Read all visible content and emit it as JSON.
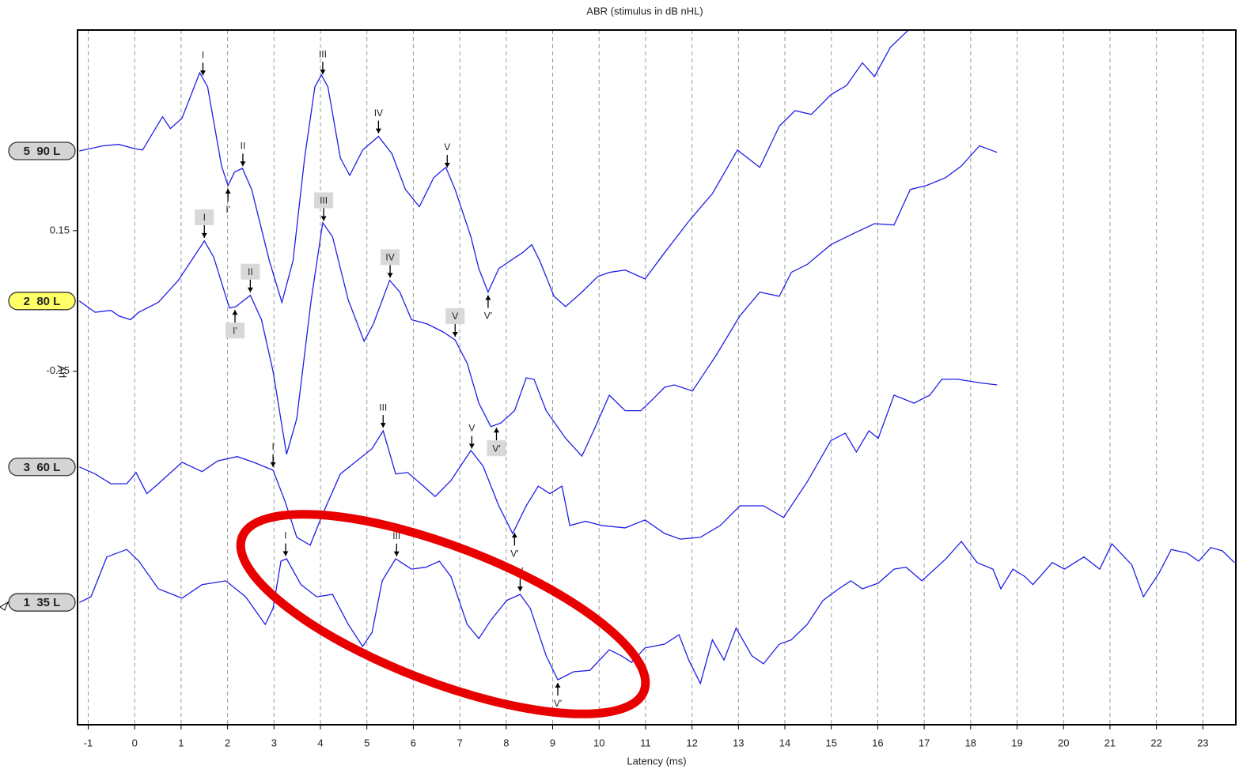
{
  "chart_data": {
    "type": "line",
    "title": "ABR (stimulus in dB nHL)",
    "x_label": "Latency (ms)",
    "y_label": "µV",
    "xlim": [
      -1.23,
      23.71
    ],
    "ylim": [
      -0.904,
      0.578
    ],
    "xticks": [
      -1,
      0,
      1,
      2,
      3,
      4,
      5,
      6,
      7,
      8,
      9,
      10,
      11,
      12,
      13,
      14,
      15,
      16,
      17,
      18,
      19,
      20,
      21,
      22,
      23
    ],
    "yticks": [
      0.15,
      -0.15
    ],
    "grid": true,
    "series": [
      {
        "name": "5  90 L",
        "color": "#1f1fe6",
        "label_fill": "#d4d4d4",
        "boxed": false,
        "x": [
          -1.19,
          -0.68,
          -0.34,
          0,
          0.17,
          0.6,
          0.77,
          1.02,
          1.4,
          1.57,
          1.87,
          2.01,
          2.15,
          2.32,
          2.52,
          2.9,
          3.17,
          3.41,
          3.66,
          3.88,
          4.02,
          4.16,
          4.43,
          4.63,
          4.91,
          5.25,
          5.54,
          5.83,
          6.13,
          6.44,
          6.7,
          6.9,
          7.24,
          7.41,
          7.61,
          7.84,
          8.09,
          8.35,
          8.55,
          8.72,
          9.03,
          9.28,
          9.63,
          9.97,
          10.22,
          10.56,
          10.99,
          11.41,
          11.93,
          12.44,
          12.98,
          13.46,
          13.88,
          14.22,
          14.57,
          14.99,
          15.33,
          15.67,
          15.93,
          16.27,
          16.66
        ],
        "values": [
          0.32,
          0.331,
          0.334,
          0.325,
          0.322,
          0.393,
          0.368,
          0.39,
          0.487,
          0.457,
          0.288,
          0.246,
          0.275,
          0.283,
          0.238,
          0.086,
          -0.003,
          0.086,
          0.305,
          0.457,
          0.482,
          0.457,
          0.305,
          0.268,
          0.322,
          0.351,
          0.314,
          0.238,
          0.201,
          0.263,
          0.285,
          0.238,
          0.137,
          0.069,
          0.019,
          0.069,
          0.086,
          0.103,
          0.12,
          0.086,
          0.01,
          -0.012,
          0.019,
          0.052,
          0.061,
          0.066,
          0.047,
          0.103,
          0.17,
          0.229,
          0.322,
          0.285,
          0.373,
          0.406,
          0.398,
          0.44,
          0.46,
          0.508,
          0.479,
          0.541,
          0.578
        ],
        "markers": [
          {
            "label": "I",
            "x": 1.47,
            "kind": "peak"
          },
          {
            "label": "I'",
            "x": 2.01,
            "kind": "trough"
          },
          {
            "label": "II",
            "x": 2.33,
            "kind": "peak"
          },
          {
            "label": "III",
            "x": 4.05,
            "kind": "peak"
          },
          {
            "label": "IV",
            "x": 5.25,
            "kind": "peak"
          },
          {
            "label": "V",
            "x": 6.73,
            "kind": "peak"
          },
          {
            "label": "V'",
            "x": 7.61,
            "kind": "trough"
          }
        ]
      },
      {
        "name": "2  80 L",
        "color": "#1f1fe6",
        "label_fill": "#ffff66",
        "boxed": true,
        "x": [
          -1.19,
          -0.85,
          -0.51,
          -0.34,
          -0.09,
          0.09,
          0.51,
          0.94,
          1.5,
          1.7,
          2.04,
          2.18,
          2.49,
          2.73,
          2.98,
          3.27,
          3.49,
          3.8,
          4.05,
          4.26,
          4.6,
          4.94,
          5.14,
          5.49,
          5.71,
          5.96,
          6.3,
          6.64,
          6.9,
          7.16,
          7.41,
          7.67,
          7.89,
          8.18,
          8.43,
          8.6,
          8.86,
          9.28,
          9.63,
          9.88,
          10.22,
          10.56,
          10.9,
          11.16,
          11.41,
          11.62,
          12.01,
          12.52,
          13.03,
          13.46,
          13.88,
          14.14,
          14.48,
          14.99,
          15.5,
          15.93,
          16.35,
          16.7,
          17.04,
          17.46,
          17.8,
          18.19,
          18.57
        ],
        "values": [
          0,
          -0.024,
          -0.02,
          -0.032,
          -0.04,
          -0.024,
          -0.003,
          0.044,
          0.128,
          0.094,
          -0.015,
          -0.012,
          0.012,
          -0.04,
          -0.15,
          -0.327,
          -0.251,
          0.002,
          0.167,
          0.137,
          0.002,
          -0.086,
          -0.049,
          0.044,
          0.019,
          -0.04,
          -0.049,
          -0.066,
          -0.083,
          -0.133,
          -0.218,
          -0.268,
          -0.26,
          -0.234,
          -0.164,
          -0.167,
          -0.234,
          -0.293,
          -0.331,
          -0.277,
          -0.201,
          -0.234,
          -0.234,
          -0.209,
          -0.184,
          -0.179,
          -0.192,
          -0.116,
          -0.032,
          0.019,
          0.01,
          0.061,
          0.078,
          0.12,
          0.145,
          0.165,
          0.162,
          0.238,
          0.246,
          0.263,
          0.288,
          0.331,
          0.317
        ],
        "markers": [
          {
            "label": "I",
            "x": 1.5,
            "kind": "peak"
          },
          {
            "label": "I'",
            "x": 2.16,
            "kind": "trough"
          },
          {
            "label": "II",
            "x": 2.49,
            "kind": "peak"
          },
          {
            "label": "III",
            "x": 4.07,
            "kind": "peak"
          },
          {
            "label": "IV",
            "x": 5.5,
            "kind": "peak"
          },
          {
            "label": "V",
            "x": 6.9,
            "kind": "peak"
          },
          {
            "label": "V'",
            "x": 7.79,
            "kind": "trough"
          }
        ]
      },
      {
        "name": "3  60 L",
        "color": "#1f1fe6",
        "label_fill": "#d4d4d4",
        "boxed": false,
        "x": [
          -1.19,
          -0.85,
          -0.51,
          -0.17,
          0.03,
          0.26,
          0.51,
          1.02,
          1.45,
          1.79,
          2.21,
          2.56,
          2.98,
          3.24,
          3.49,
          3.78,
          4.05,
          4.43,
          5.11,
          5.35,
          5.62,
          5.88,
          6.22,
          6.47,
          6.81,
          7.24,
          7.5,
          7.84,
          8.14,
          8.43,
          8.69,
          8.94,
          9.2,
          9.37,
          9.71,
          10.05,
          10.56,
          10.99,
          11.41,
          11.75,
          12.18,
          12.61,
          13.03,
          13.54,
          13.97,
          14.48,
          14.99,
          15.3,
          15.54,
          15.81,
          16.01,
          16.35,
          16.78,
          17.12,
          17.38,
          17.72,
          18.23,
          18.57
        ],
        "values": [
          -0.354,
          -0.369,
          -0.39,
          -0.39,
          -0.366,
          -0.411,
          -0.39,
          -0.344,
          -0.364,
          -0.341,
          -0.332,
          -0.344,
          -0.361,
          -0.428,
          -0.504,
          -0.521,
          -0.454,
          -0.369,
          -0.315,
          -0.277,
          -0.369,
          -0.366,
          -0.395,
          -0.417,
          -0.383,
          -0.319,
          -0.352,
          -0.437,
          -0.496,
          -0.437,
          -0.395,
          -0.411,
          -0.395,
          -0.479,
          -0.47,
          -0.479,
          -0.484,
          -0.467,
          -0.496,
          -0.508,
          -0.504,
          -0.479,
          -0.437,
          -0.437,
          -0.462,
          -0.386,
          -0.298,
          -0.282,
          -0.322,
          -0.277,
          -0.293,
          -0.201,
          -0.218,
          -0.201,
          -0.167,
          -0.167,
          -0.175,
          -0.179
        ],
        "markers": [
          {
            "label": "I",
            "x": 2.98,
            "kind": "peak"
          },
          {
            "label": "III",
            "x": 5.35,
            "kind": "peak"
          },
          {
            "label": "V",
            "x": 7.26,
            "kind": "peak"
          },
          {
            "label": "V'",
            "x": 8.18,
            "kind": "trough"
          }
        ]
      },
      {
        "name": "1  35 L",
        "color": "#1f1fe6",
        "label_fill": "#d4d4d4",
        "boxed": false,
        "x": [
          -1.19,
          -0.94,
          -0.6,
          -0.17,
          0.09,
          0.51,
          1.02,
          1.45,
          1.96,
          2.39,
          2.81,
          2.98,
          3.15,
          3.27,
          3.58,
          3.92,
          4.26,
          4.6,
          4.91,
          5.11,
          5.33,
          5.62,
          5.96,
          6.27,
          6.56,
          6.81,
          7.16,
          7.41,
          7.67,
          8.01,
          8.3,
          8.52,
          8.86,
          9.11,
          9.45,
          9.8,
          10.22,
          10.48,
          10.7,
          10.99,
          11.41,
          11.72,
          11.93,
          12.18,
          12.44,
          12.69,
          12.95,
          13.29,
          13.54,
          13.88,
          14.14,
          14.48,
          14.82,
          15.16,
          15.42,
          15.67,
          16.01,
          16.35,
          16.61,
          16.95,
          17.46,
          17.8,
          18.14,
          18.48,
          18.65,
          18.91,
          19.17,
          19.34,
          19.76,
          20.02,
          20.44,
          20.78,
          21.04,
          21.47,
          21.72,
          22.06,
          22.32,
          22.66,
          22.91,
          23.17,
          23.42,
          23.68
        ],
        "values": [
          -0.643,
          -0.631,
          -0.546,
          -0.53,
          -0.555,
          -0.614,
          -0.634,
          -0.605,
          -0.597,
          -0.631,
          -0.69,
          -0.656,
          -0.555,
          -0.55,
          -0.605,
          -0.631,
          -0.626,
          -0.69,
          -0.737,
          -0.707,
          -0.597,
          -0.55,
          -0.572,
          -0.568,
          -0.555,
          -0.588,
          -0.69,
          -0.72,
          -0.681,
          -0.639,
          -0.626,
          -0.656,
          -0.757,
          -0.808,
          -0.791,
          -0.788,
          -0.744,
          -0.757,
          -0.771,
          -0.74,
          -0.732,
          -0.712,
          -0.766,
          -0.816,
          -0.723,
          -0.766,
          -0.698,
          -0.757,
          -0.774,
          -0.732,
          -0.723,
          -0.69,
          -0.639,
          -0.614,
          -0.597,
          -0.614,
          -0.602,
          -0.572,
          -0.568,
          -0.597,
          -0.551,
          -0.513,
          -0.558,
          -0.572,
          -0.614,
          -0.572,
          -0.588,
          -0.605,
          -0.558,
          -0.572,
          -0.546,
          -0.572,
          -0.518,
          -0.563,
          -0.631,
          -0.58,
          -0.53,
          -0.538,
          -0.555,
          -0.526,
          -0.533,
          -0.558
        ],
        "markers": [
          {
            "label": "I",
            "x": 3.25,
            "kind": "peak"
          },
          {
            "label": "III",
            "x": 5.64,
            "kind": "peak"
          },
          {
            "label": "V",
            "x": 8.3,
            "kind": "peak"
          },
          {
            "label": "V'",
            "x": 9.11,
            "kind": "trough"
          }
        ]
      }
    ]
  }
}
